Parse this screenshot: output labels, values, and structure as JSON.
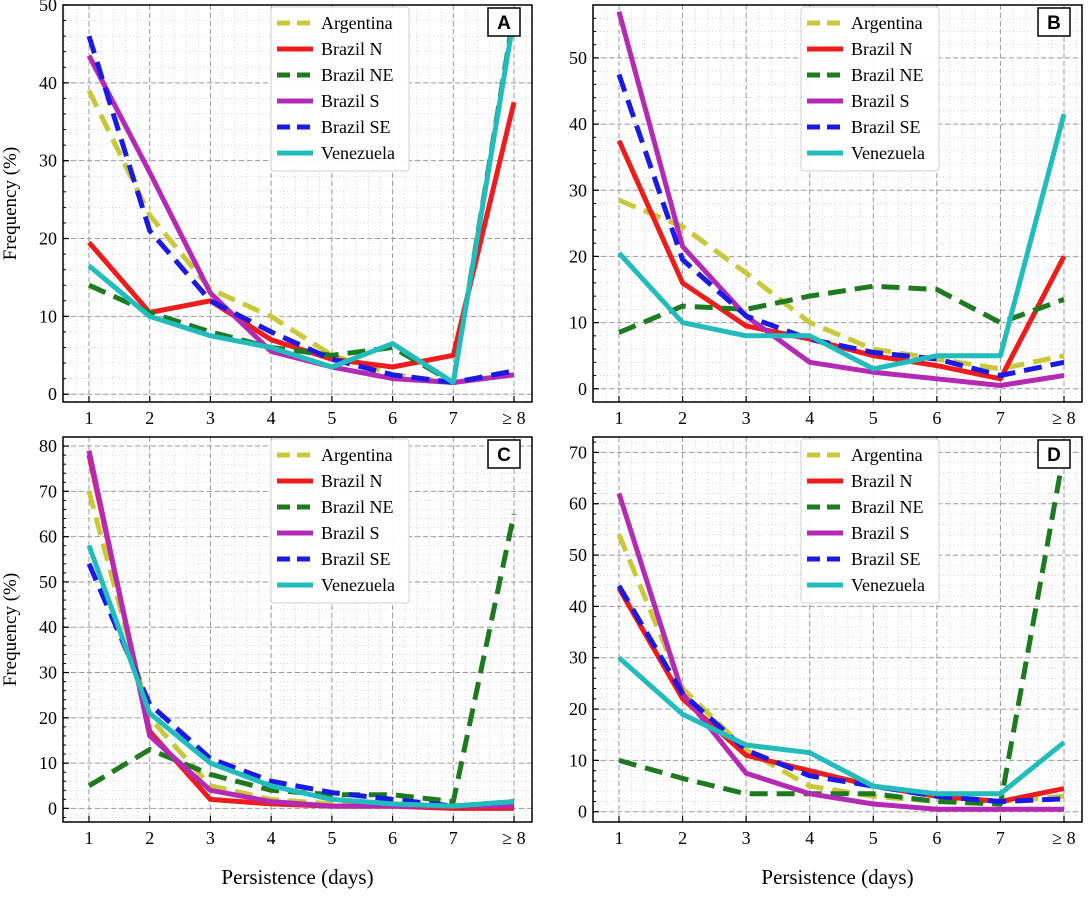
{
  "colors": {
    "Argentina": "#c8c83a",
    "Brazil N": "#ee1c1c",
    "Brazil NE": "#1e7a1e",
    "Brazil S": "#b42ab4",
    "Brazil SE": "#1a1ae6",
    "Venezuela": "#22bcbc"
  },
  "chart_data": [
    {
      "type": "line",
      "panel_label": "A",
      "xlabel": "",
      "ylabel": "Frequency (%)",
      "categories": [
        "1",
        "2",
        "3",
        "4",
        "5",
        "6",
        "7",
        "≥ 8"
      ],
      "ylim": [
        -1,
        50
      ],
      "yticks": [
        0,
        10,
        20,
        30,
        40,
        50
      ],
      "legend_position": "top-center",
      "series": [
        {
          "name": "Argentina",
          "dashed": true,
          "values": [
            39,
            23,
            13.5,
            10,
            5,
            2.5,
            1.5,
            2.5
          ]
        },
        {
          "name": "Brazil N",
          "dashed": false,
          "values": [
            19.5,
            10.5,
            12,
            7,
            4.5,
            3.5,
            5,
            37.5
          ]
        },
        {
          "name": "Brazil NE",
          "dashed": true,
          "values": [
            14,
            10.5,
            8,
            6,
            5,
            6,
            1.5,
            49
          ]
        },
        {
          "name": "Brazil S",
          "dashed": false,
          "values": [
            43.5,
            28.5,
            13,
            5.5,
            3.5,
            2,
            1.5,
            2.5
          ]
        },
        {
          "name": "Brazil SE",
          "dashed": true,
          "values": [
            46,
            21,
            12,
            8,
            4.5,
            2.5,
            1.5,
            3
          ]
        },
        {
          "name": "Venezuela",
          "dashed": false,
          "values": [
            16.5,
            10,
            7.5,
            6,
            3.5,
            6.5,
            1.5,
            48.5
          ]
        }
      ]
    },
    {
      "type": "line",
      "panel_label": "B",
      "xlabel": "",
      "ylabel": "",
      "categories": [
        "1",
        "2",
        "3",
        "4",
        "5",
        "6",
        "7",
        "≥ 8"
      ],
      "ylim": [
        -2,
        58
      ],
      "yticks": [
        0,
        10,
        20,
        30,
        40,
        50
      ],
      "legend_position": "top-center",
      "series": [
        {
          "name": "Argentina",
          "dashed": true,
          "values": [
            28.5,
            24.5,
            17.5,
            10,
            6,
            4.5,
            3,
            5
          ]
        },
        {
          "name": "Brazil N",
          "dashed": false,
          "values": [
            37.5,
            16,
            9.5,
            7.5,
            5,
            3.5,
            1.5,
            20
          ]
        },
        {
          "name": "Brazil NE",
          "dashed": true,
          "values": [
            8.5,
            12.5,
            12,
            14,
            15.5,
            15,
            10,
            13.5
          ]
        },
        {
          "name": "Brazil S",
          "dashed": false,
          "values": [
            57,
            21.5,
            11,
            4,
            2.5,
            1.5,
            0.5,
            2
          ]
        },
        {
          "name": "Brazil SE",
          "dashed": true,
          "values": [
            47.5,
            19.5,
            11,
            7.5,
            5.5,
            4.5,
            2,
            4
          ]
        },
        {
          "name": "Venezuela",
          "dashed": false,
          "values": [
            20.5,
            10,
            8,
            8,
            3,
            5,
            5,
            41.5
          ]
        }
      ]
    },
    {
      "type": "line",
      "panel_label": "C",
      "xlabel": "Persistence (days)",
      "ylabel": "Frequency (%)",
      "categories": [
        "1",
        "2",
        "3",
        "4",
        "5",
        "6",
        "7",
        "≥ 8"
      ],
      "ylim": [
        -3,
        82
      ],
      "yticks": [
        0,
        10,
        20,
        30,
        40,
        50,
        60,
        70,
        80
      ],
      "legend_position": "top-center",
      "series": [
        {
          "name": "Argentina",
          "dashed": true,
          "values": [
            70,
            20,
            5,
            2,
            1,
            0.5,
            0.5,
            0.5
          ]
        },
        {
          "name": "Brazil N",
          "dashed": false,
          "values": [
            78,
            17,
            2,
            1,
            0.5,
            0.5,
            0,
            0
          ]
        },
        {
          "name": "Brazil NE",
          "dashed": true,
          "values": [
            5,
            13,
            7.5,
            4,
            3,
            3,
            1.5,
            65
          ]
        },
        {
          "name": "Brazil S",
          "dashed": false,
          "values": [
            79,
            16,
            4,
            1.5,
            0.5,
            0.5,
            0.5,
            0.5
          ]
        },
        {
          "name": "Brazil SE",
          "dashed": true,
          "values": [
            54,
            23,
            11,
            6,
            3.5,
            2,
            0.5,
            1.5
          ]
        },
        {
          "name": "Venezuela",
          "dashed": false,
          "values": [
            58,
            21,
            10,
            5,
            2,
            1,
            0.5,
            1.5
          ]
        }
      ]
    },
    {
      "type": "line",
      "panel_label": "D",
      "xlabel": "Persistence (days)",
      "ylabel": "",
      "categories": [
        "1",
        "2",
        "3",
        "4",
        "5",
        "6",
        "7",
        "≥ 8"
      ],
      "ylim": [
        -2,
        73
      ],
      "yticks": [
        0,
        10,
        20,
        30,
        40,
        50,
        60,
        70
      ],
      "legend_position": "top-center",
      "series": [
        {
          "name": "Argentina",
          "dashed": true,
          "values": [
            54,
            24,
            12,
            5,
            3,
            2,
            2,
            3
          ]
        },
        {
          "name": "Brazil N",
          "dashed": false,
          "values": [
            43.5,
            22,
            11,
            8,
            5,
            3,
            2,
            4.5
          ]
        },
        {
          "name": "Brazil NE",
          "dashed": true,
          "values": [
            10,
            6.5,
            3.5,
            3.5,
            3.5,
            2,
            1.5,
            70
          ]
        },
        {
          "name": "Brazil S",
          "dashed": false,
          "values": [
            62,
            23,
            7.5,
            3.5,
            1.5,
            0.5,
            0.5,
            0.5
          ]
        },
        {
          "name": "Brazil SE",
          "dashed": true,
          "values": [
            44,
            23,
            12,
            7,
            5,
            3,
            2,
            2.5
          ]
        },
        {
          "name": "Venezuela",
          "dashed": false,
          "values": [
            30,
            19,
            13,
            11.5,
            5,
            3.5,
            3.5,
            13.5
          ]
        }
      ]
    }
  ]
}
